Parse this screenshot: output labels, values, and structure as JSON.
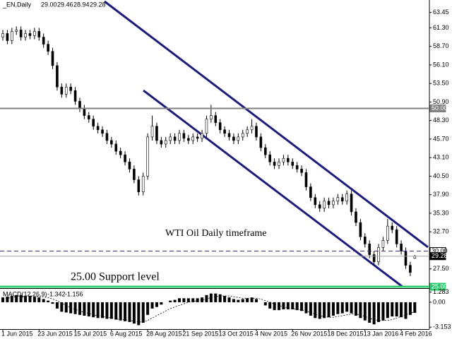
{
  "chart_data": {
    "type": "candlestick",
    "header": {
      "symbol": "_EN,Daily",
      "values": [
        "29.00",
        "29.46",
        "28.94",
        "29.28"
      ]
    },
    "annotations": [
      {
        "text": "WTI Oil Daily timeframe",
        "color": "#000000"
      },
      {
        "text": "25.00 Support level",
        "color": "#2ecc71"
      }
    ],
    "categories": [
      "1 Jun 2015",
      null,
      null,
      null,
      null,
      null,
      null,
      null,
      "23 Jun 2015",
      null,
      null,
      null,
      null,
      null,
      null,
      null,
      "15 Jul 2015",
      null,
      null,
      null,
      null,
      null,
      null,
      null,
      "6 Aug 2015",
      null,
      null,
      null,
      null,
      null,
      null,
      null,
      "28 Aug 2015",
      null,
      null,
      null,
      null,
      null,
      null,
      null,
      "21 Sep 2015",
      null,
      null,
      null,
      null,
      null,
      null,
      null,
      "13 Oct 2015",
      null,
      null,
      null,
      null,
      null,
      null,
      null,
      "4 Nov 2015",
      null,
      null,
      null,
      null,
      null,
      null,
      null,
      "26 Nov 2015",
      null,
      null,
      null,
      null,
      null,
      null,
      null,
      "18 Dec 2015",
      null,
      null,
      null,
      null,
      null,
      null,
      null,
      "13 Jan 2016",
      null,
      null,
      null,
      null,
      null,
      null,
      null,
      "4 Feb 2016",
      null,
      null,
      null
    ],
    "ohlc": [
      [
        60.0,
        61.0,
        59.5,
        60.5
      ],
      [
        60.5,
        61.0,
        59.0,
        59.5
      ],
      [
        59.5,
        61.3,
        59.0,
        60.8
      ],
      [
        60.8,
        61.5,
        60.3,
        61.0
      ],
      [
        61.0,
        61.5,
        59.5,
        60.0
      ],
      [
        60.0,
        61.0,
        59.5,
        60.5
      ],
      [
        60.5,
        61.0,
        59.7,
        60.2
      ],
      [
        60.2,
        61.3,
        59.7,
        60.8
      ],
      [
        60.8,
        61.3,
        59.5,
        60.0
      ],
      [
        60.0,
        60.5,
        58.5,
        59.0
      ],
      [
        59.0,
        59.5,
        57.5,
        58.0
      ],
      [
        58.0,
        58.5,
        55.5,
        56.0
      ],
      [
        56.0,
        56.5,
        52.5,
        53.0
      ],
      [
        53.0,
        53.5,
        51.5,
        52.0
      ],
      [
        52.0,
        53.5,
        51.5,
        53.0
      ],
      [
        53.0,
        53.5,
        52.0,
        52.5
      ],
      [
        52.5,
        53.0,
        50.5,
        51.0
      ],
      [
        51.0,
        51.5,
        49.5,
        50.0
      ],
      [
        50.0,
        50.5,
        48.5,
        49.0
      ],
      [
        49.0,
        49.5,
        48.0,
        48.5
      ],
      [
        48.5,
        49.0,
        47.0,
        47.5
      ],
      [
        47.5,
        48.0,
        46.5,
        47.0
      ],
      [
        47.0,
        47.5,
        46.0,
        46.5
      ],
      [
        46.5,
        47.0,
        45.0,
        45.5
      ],
      [
        45.5,
        46.0,
        44.5,
        45.0
      ],
      [
        45.0,
        45.5,
        43.5,
        44.0
      ],
      [
        44.0,
        44.5,
        43.0,
        43.5
      ],
      [
        43.5,
        44.0,
        42.0,
        42.5
      ],
      [
        42.5,
        43.0,
        41.0,
        41.5
      ],
      [
        41.5,
        42.0,
        39.5,
        40.0
      ],
      [
        40.0,
        40.5,
        37.8,
        38.3
      ],
      [
        38.3,
        41.0,
        37.8,
        40.5
      ],
      [
        40.5,
        46.5,
        40.0,
        46.0
      ],
      [
        46.0,
        49.0,
        45.5,
        47.5
      ],
      [
        47.5,
        48.0,
        45.0,
        45.5
      ],
      [
        45.5,
        46.0,
        44.5,
        45.0
      ],
      [
        45.0,
        46.0,
        44.5,
        45.5
      ],
      [
        45.5,
        46.5,
        45.0,
        46.0
      ],
      [
        46.0,
        46.5,
        45.0,
        45.5
      ],
      [
        45.5,
        47.0,
        45.0,
        46.5
      ],
      [
        46.5,
        47.0,
        45.3,
        45.8
      ],
      [
        45.8,
        46.3,
        45.0,
        45.5
      ],
      [
        45.5,
        46.5,
        45.0,
        46.0
      ],
      [
        46.0,
        46.5,
        45.3,
        45.8
      ],
      [
        45.8,
        47.0,
        45.3,
        46.5
      ],
      [
        46.5,
        49.0,
        46.0,
        48.5
      ],
      [
        48.5,
        50.5,
        48.0,
        49.0
      ],
      [
        49.0,
        49.5,
        47.5,
        48.0
      ],
      [
        48.0,
        48.5,
        46.5,
        47.0
      ],
      [
        47.0,
        47.5,
        46.0,
        46.5
      ],
      [
        46.5,
        47.0,
        45.5,
        46.0
      ],
      [
        46.0,
        46.5,
        45.0,
        45.5
      ],
      [
        45.5,
        46.5,
        45.0,
        46.0
      ],
      [
        46.0,
        47.0,
        45.5,
        46.5
      ],
      [
        46.5,
        47.5,
        46.0,
        47.0
      ],
      [
        47.0,
        48.5,
        46.5,
        47.5
      ],
      [
        47.5,
        48.0,
        45.5,
        46.0
      ],
      [
        46.0,
        46.5,
        44.0,
        44.5
      ],
      [
        44.5,
        45.0,
        43.0,
        43.5
      ],
      [
        43.5,
        44.0,
        42.0,
        42.5
      ],
      [
        42.5,
        43.0,
        41.5,
        42.0
      ],
      [
        42.0,
        43.0,
        41.5,
        42.5
      ],
      [
        42.5,
        43.5,
        42.0,
        43.0
      ],
      [
        43.0,
        43.5,
        42.0,
        42.5
      ],
      [
        42.5,
        43.0,
        41.5,
        42.0
      ],
      [
        42.0,
        42.5,
        41.0,
        41.5
      ],
      [
        41.5,
        42.0,
        40.5,
        41.0
      ],
      [
        41.0,
        41.5,
        38.5,
        39.0
      ],
      [
        39.0,
        39.5,
        37.0,
        37.5
      ],
      [
        37.5,
        38.0,
        36.0,
        36.5
      ],
      [
        36.5,
        37.0,
        35.5,
        36.0
      ],
      [
        36.0,
        37.5,
        35.5,
        37.0
      ],
      [
        37.0,
        37.5,
        36.0,
        36.5
      ],
      [
        36.5,
        37.5,
        36.0,
        37.0
      ],
      [
        37.0,
        38.0,
        36.5,
        37.5
      ],
      [
        37.5,
        38.0,
        36.5,
        37.0
      ],
      [
        37.0,
        38.5,
        36.5,
        38.0
      ],
      [
        38.0,
        38.5,
        35.0,
        35.5
      ],
      [
        35.5,
        36.0,
        33.5,
        34.0
      ],
      [
        34.0,
        34.5,
        31.5,
        32.0
      ],
      [
        32.0,
        32.5,
        30.5,
        31.0
      ],
      [
        31.0,
        31.5,
        29.0,
        29.5
      ],
      [
        29.5,
        30.0,
        28.0,
        28.5
      ],
      [
        28.5,
        31.0,
        28.0,
        30.5
      ],
      [
        30.5,
        32.0,
        30.0,
        31.5
      ],
      [
        31.5,
        34.5,
        31.0,
        33.5
      ],
      [
        33.5,
        34.0,
        32.5,
        33.0
      ],
      [
        33.0,
        33.5,
        30.5,
        31.0
      ],
      [
        31.0,
        31.5,
        29.5,
        30.0
      ],
      [
        30.0,
        30.5,
        27.5,
        28.0
      ],
      [
        28.0,
        28.5,
        26.5,
        27.0
      ],
      [
        29.0,
        29.46,
        28.94,
        29.28
      ]
    ],
    "ylim": [
      24.8,
      65.2
    ],
    "yticks": [
      {
        "value": 27.5,
        "label": "27.50"
      },
      {
        "value": 32.7,
        "label": "32.70"
      },
      {
        "value": 35.3,
        "label": "35.30"
      },
      {
        "value": 37.9,
        "label": "37.90"
      },
      {
        "value": 40.5,
        "label": "40.50"
      },
      {
        "value": 43.1,
        "label": "43.10"
      },
      {
        "value": 45.7,
        "label": "45.70"
      },
      {
        "value": 48.3,
        "label": "48.30"
      },
      {
        "value": 50.9,
        "label": "50.90"
      },
      {
        "value": 53.5,
        "label": "53.50"
      },
      {
        "value": 56.1,
        "label": "56.10"
      },
      {
        "value": 58.7,
        "label": "58.70"
      },
      {
        "value": 61.3,
        "label": "61.30"
      },
      {
        "value": 63.45,
        "label": "63.45"
      }
    ],
    "hlines": [
      {
        "value": 50,
        "label": "50.00",
        "color": "#808080",
        "style": "solid"
      },
      {
        "value": 30,
        "label": "30.00",
        "color": "#4b2a7a",
        "style": "dashed"
      },
      {
        "value": 29.28,
        "label": "29.28",
        "color": "#a0a0a0",
        "style": "solid"
      },
      {
        "value": 25,
        "label": "25.00",
        "color": "#2ecc71",
        "style": "solid"
      }
    ],
    "macd": {
      "title": "MACD(12,26,9)",
      "ylim": [
        -3.4,
        1.6
      ],
      "yticks": [
        1.283,
        {
          "value": 0,
          "label": "0.00"
        },
        -3.153
      ],
      "values": [
        0.6,
        0.7,
        0.8,
        0.9,
        0.9,
        0.8,
        0.8,
        0.7,
        0.6,
        0.4,
        0.2,
        -0.2,
        -0.8,
        -1.2,
        -1.3,
        -1.4,
        -1.5,
        -1.6,
        -1.7,
        -1.8,
        -1.9,
        -2.0,
        -2.0,
        -2.1,
        -2.1,
        -2.2,
        -2.3,
        -2.4,
        -2.5,
        -2.7,
        -2.9,
        -2.6,
        -1.6,
        -0.8,
        -0.6,
        -0.3,
        0.0,
        0.2,
        0.3,
        0.5,
        0.5,
        0.5,
        0.5,
        0.5,
        0.6,
        0.9,
        1.1,
        1.1,
        1.0,
        0.8,
        0.6,
        0.4,
        0.3,
        0.4,
        0.5,
        0.6,
        0.4,
        0.0,
        -0.4,
        -0.8,
        -1.0,
        -1.0,
        -0.9,
        -0.9,
        -0.9,
        -1.0,
        -1.1,
        -1.4,
        -1.7,
        -2.0,
        -2.1,
        -2.0,
        -1.9,
        -1.7,
        -1.5,
        -1.4,
        -1.2,
        -1.4,
        -1.7,
        -2.0,
        -2.3,
        -2.6,
        -2.8,
        -2.5,
        -2.3,
        -2.0,
        -1.8,
        -1.8,
        -1.9,
        -2.1,
        -1.6,
        -1.342
      ],
      "signal": [
        0.4,
        0.5,
        0.6,
        0.7,
        0.7,
        0.8,
        0.8,
        0.8,
        0.7,
        0.7,
        0.6,
        0.4,
        0.2,
        -0.1,
        -0.4,
        -0.7,
        -0.9,
        -1.1,
        -1.3,
        -1.4,
        -1.6,
        -1.7,
        -1.8,
        -1.9,
        -2.0,
        -2.1,
        -2.2,
        -2.2,
        -2.3,
        -2.4,
        -2.5,
        -2.5,
        -2.3,
        -2.0,
        -1.7,
        -1.4,
        -1.1,
        -0.8,
        -0.6,
        -0.4,
        -0.2,
        0.0,
        0.1,
        0.2,
        0.3,
        0.4,
        0.6,
        0.7,
        0.8,
        0.8,
        0.8,
        0.7,
        0.6,
        0.5,
        0.5,
        0.5,
        0.5,
        0.4,
        0.2,
        0.0,
        -0.2,
        -0.4,
        -0.6,
        -0.7,
        -0.8,
        -0.9,
        -1.0,
        -1.1,
        -1.3,
        -1.5,
        -1.7,
        -1.8,
        -1.9,
        -1.9,
        -1.8,
        -1.7,
        -1.6,
        -1.5,
        -1.5,
        -1.6,
        -1.8,
        -2.0,
        -2.2,
        -2.3,
        -2.3,
        -2.3,
        -2.2,
        -2.0,
        -1.8,
        -1.6,
        -1.4,
        -1.156
      ]
    }
  }
}
